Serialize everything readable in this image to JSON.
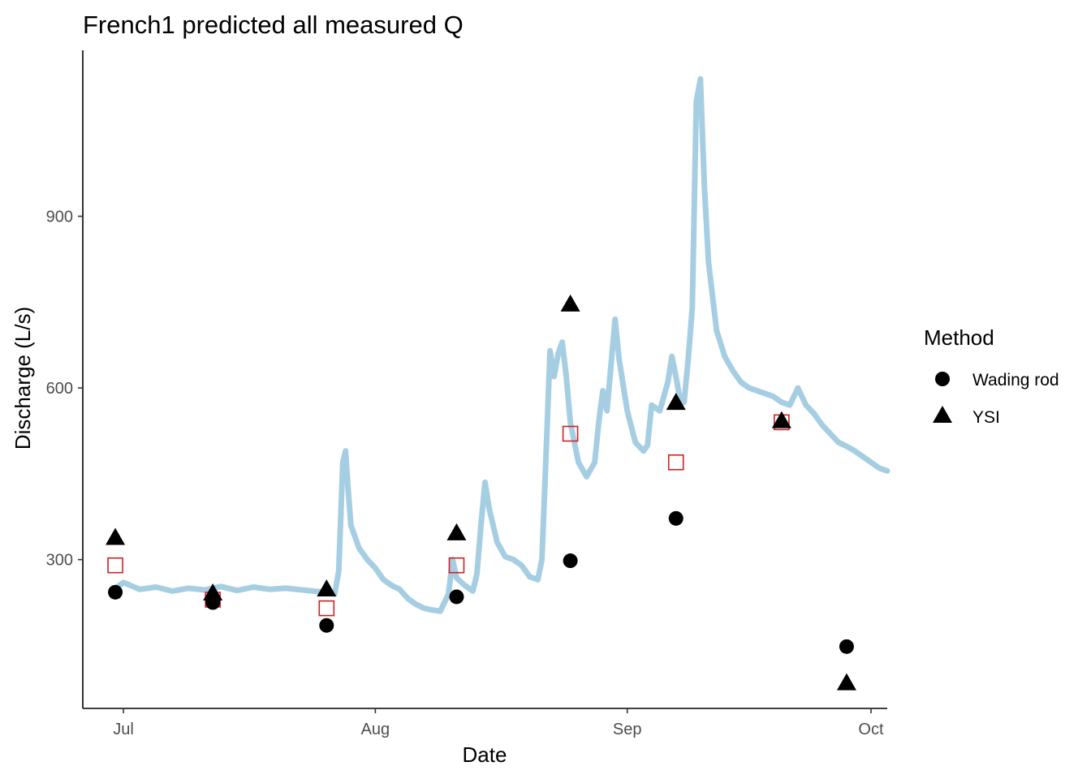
{
  "chart_data": {
    "type": "line",
    "title": "French1 predicted all measured Q",
    "xlabel": "Date",
    "ylabel": "Discharge (L/s)",
    "x_ticks": [
      {
        "label": "Jul",
        "date": "2000-07-01"
      },
      {
        "label": "Aug",
        "date": "2000-08-01"
      },
      {
        "label": "Sep",
        "date": "2000-09-01"
      },
      {
        "label": "Oct",
        "date": "2000-10-01"
      }
    ],
    "y_ticks": [
      300,
      600,
      900
    ],
    "xlim": [
      "2000-06-26",
      "2000-10-03"
    ],
    "ylim": [
      40,
      1190
    ],
    "grid": false,
    "legend_position": "right",
    "legend_title": "Method",
    "colors": {
      "predicted_line": "#a6cee3",
      "predicted_point": "#cc2222",
      "measured": "#000000",
      "axis": "#000000",
      "tick_text": "#4d4d4d"
    },
    "series": [
      {
        "name": "",
        "kind": "line",
        "values": [
          [
            "2000-06-30",
            250
          ],
          [
            "2000-07-01",
            260
          ],
          [
            "2000-07-03",
            248
          ],
          [
            "2000-07-05",
            252
          ],
          [
            "2000-07-07",
            245
          ],
          [
            "2000-07-09",
            250
          ],
          [
            "2000-07-11",
            247
          ],
          [
            "2000-07-13",
            253
          ],
          [
            "2000-07-15",
            246
          ],
          [
            "2000-07-17",
            252
          ],
          [
            "2000-07-19",
            248
          ],
          [
            "2000-07-21",
            250
          ],
          [
            "2000-07-23",
            247
          ],
          [
            "2000-07-25",
            244
          ],
          [
            "2000-07-27",
            240
          ],
          [
            "2000-07-27T12",
            280
          ],
          [
            "2000-07-28",
            470
          ],
          [
            "2000-07-28T08",
            490
          ],
          [
            "2000-07-28T16",
            420
          ],
          [
            "2000-07-29",
            360
          ],
          [
            "2000-07-30",
            320
          ],
          [
            "2000-07-31",
            300
          ],
          [
            "2000-08-01",
            285
          ],
          [
            "2000-08-02",
            265
          ],
          [
            "2000-08-03",
            255
          ],
          [
            "2000-08-04",
            248
          ],
          [
            "2000-08-05",
            232
          ],
          [
            "2000-08-06",
            222
          ],
          [
            "2000-08-07",
            215
          ],
          [
            "2000-08-08",
            212
          ],
          [
            "2000-08-09",
            210
          ],
          [
            "2000-08-10",
            240
          ],
          [
            "2000-08-10T12",
            300
          ],
          [
            "2000-08-11",
            268
          ],
          [
            "2000-08-12",
            255
          ],
          [
            "2000-08-13",
            245
          ],
          [
            "2000-08-13T12",
            275
          ],
          [
            "2000-08-14",
            360
          ],
          [
            "2000-08-14T12",
            435
          ],
          [
            "2000-08-15",
            390
          ],
          [
            "2000-08-16",
            330
          ],
          [
            "2000-08-17",
            305
          ],
          [
            "2000-08-18",
            300
          ],
          [
            "2000-08-19",
            290
          ],
          [
            "2000-08-20",
            270
          ],
          [
            "2000-08-21",
            265
          ],
          [
            "2000-08-21T12",
            300
          ],
          [
            "2000-08-22",
            480
          ],
          [
            "2000-08-22T12",
            665
          ],
          [
            "2000-08-23",
            620
          ],
          [
            "2000-08-23T12",
            660
          ],
          [
            "2000-08-24",
            680
          ],
          [
            "2000-08-24T12",
            620
          ],
          [
            "2000-08-25",
            540
          ],
          [
            "2000-08-26",
            470
          ],
          [
            "2000-08-27",
            445
          ],
          [
            "2000-08-28",
            470
          ],
          [
            "2000-08-28T12",
            540
          ],
          [
            "2000-08-29",
            595
          ],
          [
            "2000-08-29T12",
            560
          ],
          [
            "2000-08-30",
            640
          ],
          [
            "2000-08-30T12",
            720
          ],
          [
            "2000-08-31",
            650
          ],
          [
            "2000-09-01",
            560
          ],
          [
            "2000-09-02",
            505
          ],
          [
            "2000-09-03",
            490
          ],
          [
            "2000-09-03T12",
            500
          ],
          [
            "2000-09-04",
            570
          ],
          [
            "2000-09-05",
            560
          ],
          [
            "2000-09-06",
            610
          ],
          [
            "2000-09-06T12",
            655
          ],
          [
            "2000-09-07",
            620
          ],
          [
            "2000-09-07T12",
            580
          ],
          [
            "2000-09-08",
            575
          ],
          [
            "2000-09-08T12",
            650
          ],
          [
            "2000-09-09",
            740
          ],
          [
            "2000-09-09T12",
            1100
          ],
          [
            "2000-09-10",
            1140
          ],
          [
            "2000-09-10T12",
            950
          ],
          [
            "2000-09-11",
            820
          ],
          [
            "2000-09-12",
            700
          ],
          [
            "2000-09-13",
            655
          ],
          [
            "2000-09-14",
            630
          ],
          [
            "2000-09-15",
            610
          ],
          [
            "2000-09-16",
            600
          ],
          [
            "2000-09-17",
            595
          ],
          [
            "2000-09-18",
            590
          ],
          [
            "2000-09-19",
            585
          ],
          [
            "2000-09-20",
            575
          ],
          [
            "2000-09-21",
            570
          ],
          [
            "2000-09-22",
            600
          ],
          [
            "2000-09-23",
            570
          ],
          [
            "2000-09-24",
            555
          ],
          [
            "2000-09-25",
            535
          ],
          [
            "2000-09-26",
            520
          ],
          [
            "2000-09-27",
            505
          ],
          [
            "2000-09-28",
            498
          ],
          [
            "2000-09-29",
            490
          ],
          [
            "2000-09-30",
            480
          ],
          [
            "2000-10-01",
            470
          ],
          [
            "2000-10-02",
            460
          ],
          [
            "2000-10-03",
            455
          ]
        ]
      },
      {
        "name": "",
        "kind": "predicted_points",
        "values": [
          [
            "2000-06-30",
            290
          ],
          [
            "2000-07-12",
            230
          ],
          [
            "2000-07-26",
            215
          ],
          [
            "2000-08-11",
            290
          ],
          [
            "2000-08-25",
            520
          ],
          [
            "2000-09-07",
            470
          ],
          [
            "2000-09-20",
            540
          ]
        ]
      },
      {
        "name": "Wading rod",
        "kind": "measured",
        "values": [
          [
            "2000-06-30",
            243
          ],
          [
            "2000-07-12",
            225
          ],
          [
            "2000-07-26",
            185
          ],
          [
            "2000-08-11",
            235
          ],
          [
            "2000-08-25",
            298
          ],
          [
            "2000-09-07",
            372
          ],
          [
            "2000-09-28",
            148
          ]
        ]
      },
      {
        "name": "YSI",
        "kind": "measured",
        "values": [
          [
            "2000-06-30",
            337
          ],
          [
            "2000-07-12",
            240
          ],
          [
            "2000-07-26",
            247
          ],
          [
            "2000-08-11",
            345
          ],
          [
            "2000-08-25",
            745
          ],
          [
            "2000-09-07",
            573
          ],
          [
            "2000-09-20",
            541
          ],
          [
            "2000-09-28",
            83
          ]
        ]
      }
    ]
  }
}
